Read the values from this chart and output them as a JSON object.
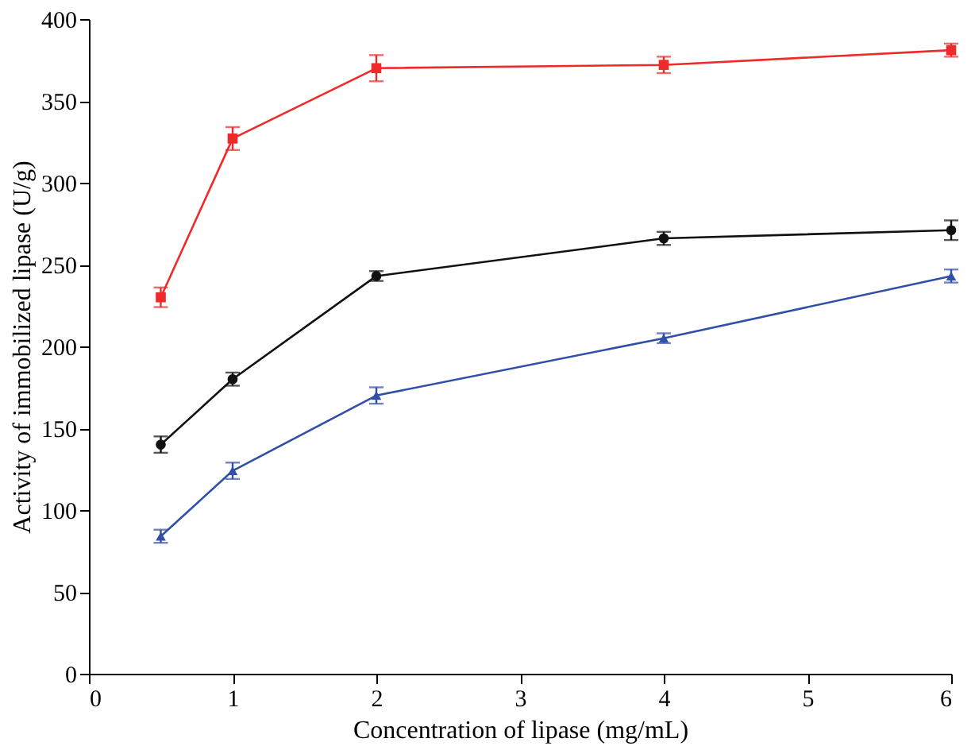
{
  "chart_data": {
    "type": "line",
    "xlabel": "Concentration of lipase (mg/mL)",
    "ylabel": "Activity of immobilized lipase (U/g)",
    "x": [
      0.5,
      1,
      2,
      4,
      6
    ],
    "xlim": [
      0,
      6
    ],
    "xticks": [
      0,
      1,
      2,
      3,
      4,
      5,
      6
    ],
    "ylim": [
      0,
      400
    ],
    "yticks": [
      0,
      50,
      100,
      150,
      200,
      250,
      300,
      350,
      400
    ],
    "grid": false,
    "line_style": "solid",
    "series": [
      {
        "color": "#ee2a2a",
        "marker": "square",
        "values": [
          230,
          327,
          370,
          372,
          381
        ],
        "errors": [
          6,
          7,
          8,
          5,
          4
        ]
      },
      {
        "color": "#111111",
        "marker": "circle",
        "values": [
          140,
          180,
          243,
          266,
          271
        ],
        "errors": [
          5,
          4,
          3,
          4,
          6
        ]
      },
      {
        "color": "#3050a8",
        "marker": "triangle",
        "values": [
          84,
          124,
          170,
          205,
          243
        ],
        "errors": [
          4,
          5,
          5,
          3,
          4
        ]
      }
    ]
  }
}
